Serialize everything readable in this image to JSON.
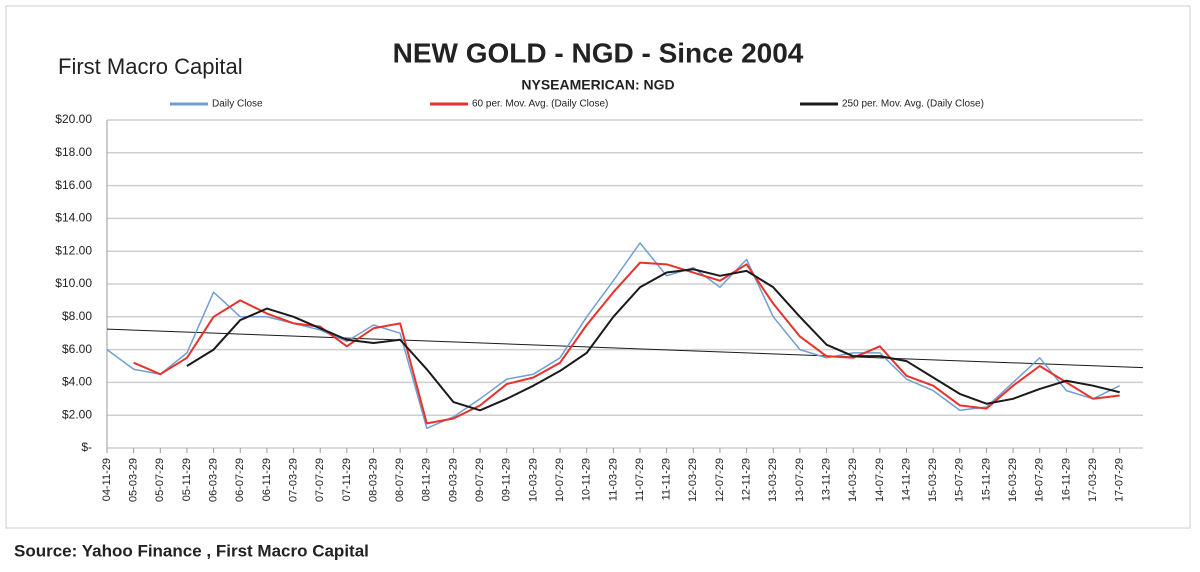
{
  "chart_data": {
    "type": "line",
    "title": "NEW GOLD - NGD - Since 2004",
    "subtitle": "NYSEAMERICAN: NGD",
    "brand": "First Macro Capital",
    "source": "Source: Yahoo Finance , First Macro Capital",
    "categories": [
      "04-11-29",
      "05-03-29",
      "05-07-29",
      "05-11-29",
      "06-03-29",
      "06-07-29",
      "06-11-29",
      "07-03-29",
      "07-07-29",
      "07-11-29",
      "08-03-29",
      "08-07-29",
      "08-11-29",
      "09-03-29",
      "09-07-29",
      "09-11-29",
      "10-03-29",
      "10-07-29",
      "10-11-29",
      "11-03-29",
      "11-07-29",
      "11-11-29",
      "12-03-29",
      "12-07-29",
      "12-11-29",
      "13-03-29",
      "13-07-29",
      "13-11-29",
      "14-03-29",
      "14-07-29",
      "14-11-29",
      "15-03-29",
      "15-07-29",
      "15-11-29",
      "16-03-29",
      "16-07-29",
      "16-11-29",
      "17-03-29",
      "17-07-29"
    ],
    "series": [
      {
        "name": "Daily Close",
        "color": "#6f9fd0",
        "width": 1.5,
        "values": [
          6.0,
          4.8,
          4.5,
          5.8,
          9.5,
          8.0,
          8.0,
          7.6,
          7.2,
          6.5,
          7.5,
          7.0,
          1.2,
          1.9,
          3.0,
          4.2,
          4.5,
          5.5,
          8.0,
          10.2,
          12.5,
          10.5,
          11.0,
          9.8,
          11.5,
          8.0,
          6.0,
          5.5,
          5.8,
          5.8,
          4.2,
          3.5,
          2.3,
          2.5,
          4.0,
          5.5,
          3.5,
          3.0,
          3.8
        ]
      },
      {
        "name": "60 per. Mov. Avg. (Daily Close)",
        "color": "#e8322b",
        "width": 2,
        "values": [
          null,
          5.2,
          4.5,
          5.5,
          8.0,
          9.0,
          8.2,
          7.6,
          7.4,
          6.2,
          7.3,
          7.6,
          1.5,
          1.8,
          2.6,
          3.9,
          4.3,
          5.2,
          7.5,
          9.5,
          11.3,
          11.2,
          10.7,
          10.2,
          11.2,
          8.8,
          6.8,
          5.6,
          5.5,
          6.2,
          4.4,
          3.8,
          2.6,
          2.4,
          3.8,
          5.0,
          4.0,
          3.0,
          3.2
        ]
      },
      {
        "name": "250 per. Mov. Avg. (Daily Close)",
        "color": "#1a1a1a",
        "width": 2,
        "values": [
          null,
          null,
          null,
          5.0,
          6.0,
          7.8,
          8.5,
          8.0,
          7.3,
          6.6,
          6.4,
          6.6,
          4.8,
          2.8,
          2.3,
          3.0,
          3.8,
          4.7,
          5.8,
          8.0,
          9.8,
          10.7,
          10.9,
          10.5,
          10.8,
          9.8,
          8.0,
          6.3,
          5.6,
          5.6,
          5.3,
          4.3,
          3.3,
          2.7,
          3.0,
          3.6,
          4.1,
          3.8,
          3.4
        ]
      }
    ],
    "trendline": {
      "values": [
        7.25,
        4.9
      ],
      "color": "#1a1a1a"
    },
    "ylim": [
      0,
      20
    ],
    "yticks": [
      {
        "value": 0,
        "label": "$-"
      },
      {
        "value": 2,
        "label": "$2.00"
      },
      {
        "value": 4,
        "label": "$4.00"
      },
      {
        "value": 6,
        "label": "$6.00"
      },
      {
        "value": 8,
        "label": "$8.00"
      },
      {
        "value": 10,
        "label": "$10.00"
      },
      {
        "value": 12,
        "label": "$12.00"
      },
      {
        "value": 14,
        "label": "$14.00"
      },
      {
        "value": 16,
        "label": "$16.00"
      },
      {
        "value": 18,
        "label": "$18.00"
      },
      {
        "value": 20,
        "label": "$20.00"
      }
    ],
    "grid": true
  }
}
